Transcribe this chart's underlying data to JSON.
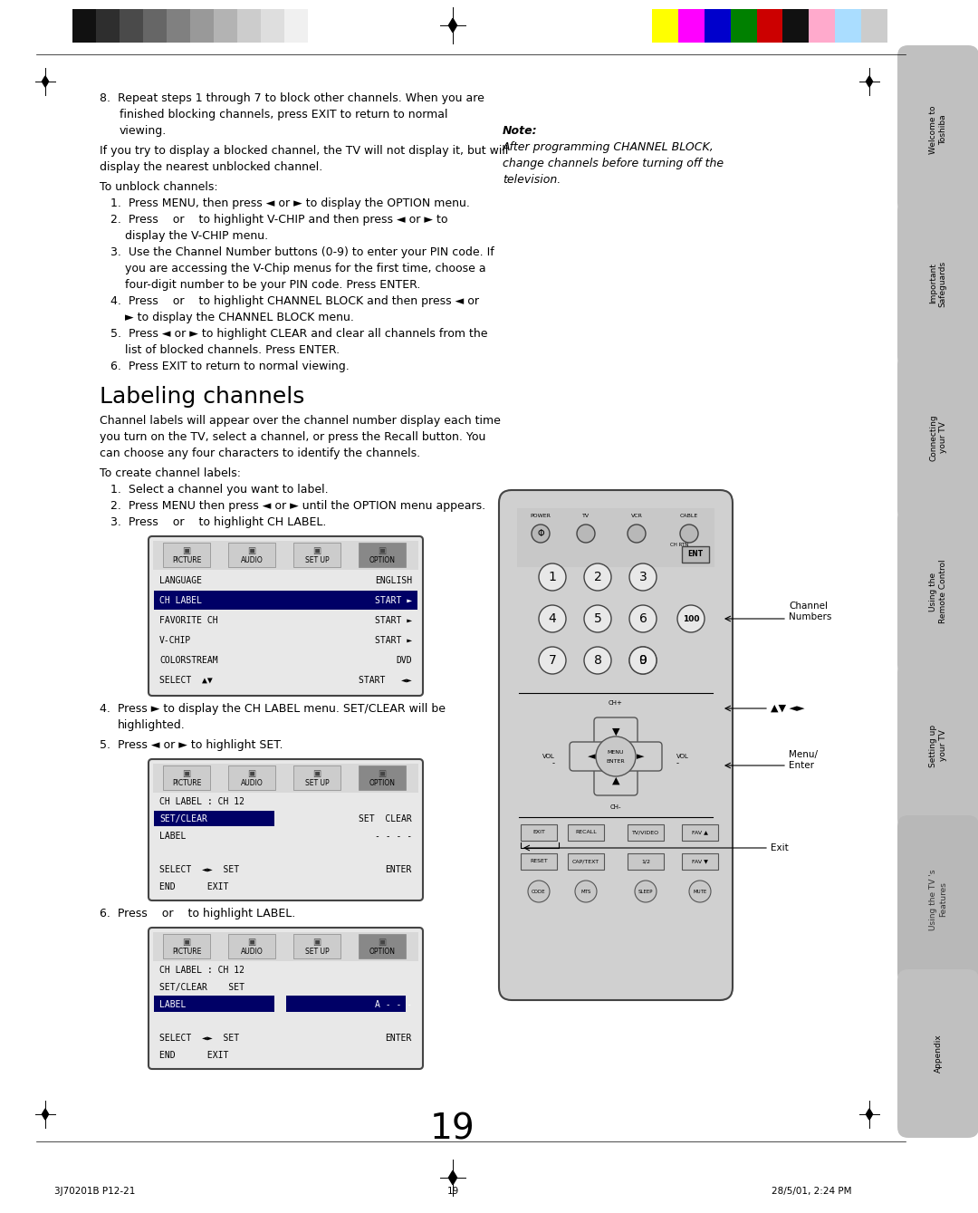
{
  "page_number": "19",
  "bg": "#ffffff",
  "header_gray_colors": [
    "#111111",
    "#2e2e2e",
    "#4a4a4a",
    "#666666",
    "#808080",
    "#999999",
    "#b3b3b3",
    "#cccccc",
    "#dedede",
    "#f0f0f0"
  ],
  "header_color_colors": [
    "#ffff00",
    "#ff00ff",
    "#0000cc",
    "#008000",
    "#cc0000",
    "#111111",
    "#ffaacc",
    "#aaddff",
    "#cccccc"
  ],
  "footer_left": "3J70201B P12-21",
  "footer_center": "19",
  "footer_right": "28/5/01, 2:24 PM",
  "right_tabs": [
    {
      "label": "Welcome to\nToshiba"
    },
    {
      "label": "Important\nSafeguards"
    },
    {
      "label": "Connecting\nyour TV"
    },
    {
      "label": "Using the\nRemote Control"
    },
    {
      "label": "Setting up\nyour TV"
    },
    {
      "label": "Using the TV 's\nFeatures"
    },
    {
      "label": "Appendix"
    }
  ],
  "active_tab": 5,
  "note_title": "Note:",
  "note_body": "After programming CHANNEL BLOCK,\nchange channels before turning off the\ntelevision."
}
